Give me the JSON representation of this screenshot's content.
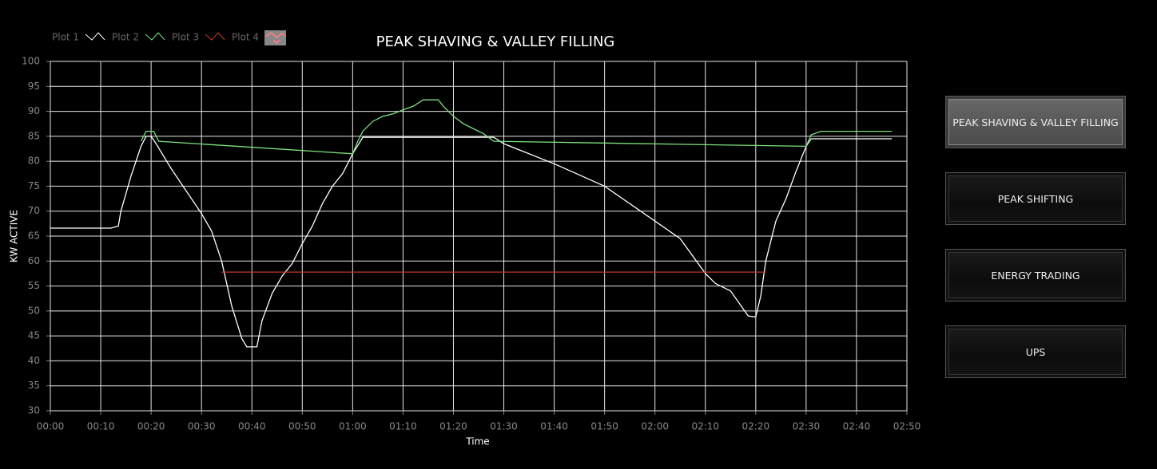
{
  "chart_data": {
    "type": "line",
    "title": "PEAK SHAVING & VALLEY FILLING",
    "x_label": "Time",
    "y_label": "KW ACTIVE",
    "xlim": [
      0,
      170
    ],
    "ylim": [
      30,
      100
    ],
    "xticks": [
      {
        "value": 0,
        "label": "00:00"
      },
      {
        "value": 10,
        "label": "00:10"
      },
      {
        "value": 20,
        "label": "00:20"
      },
      {
        "value": 30,
        "label": "00:30"
      },
      {
        "value": 40,
        "label": "00:40"
      },
      {
        "value": 50,
        "label": "00:50"
      },
      {
        "value": 60,
        "label": "01:00"
      },
      {
        "value": 70,
        "label": "01:10"
      },
      {
        "value": 80,
        "label": "01:20"
      },
      {
        "value": 90,
        "label": "01:30"
      },
      {
        "value": 100,
        "label": "01:40"
      },
      {
        "value": 110,
        "label": "01:50"
      },
      {
        "value": 120,
        "label": "02:00"
      },
      {
        "value": 130,
        "label": "02:10"
      },
      {
        "value": 140,
        "label": "02:20"
      },
      {
        "value": 150,
        "label": "02:30"
      },
      {
        "value": 160,
        "label": "02:40"
      },
      {
        "value": 170,
        "label": "02:50"
      }
    ],
    "yticks": [
      30,
      35,
      40,
      45,
      50,
      55,
      60,
      65,
      70,
      75,
      80,
      85,
      90,
      95,
      100
    ],
    "grid": true,
    "series": [
      {
        "name": "Plot 1",
        "color": "#ffffff",
        "x": [
          0,
          10,
          12,
          13.5,
          14,
          16,
          18,
          19,
          20,
          21,
          24,
          27,
          30,
          32,
          34,
          36,
          38,
          39,
          41,
          42,
          44,
          46,
          48,
          50,
          52,
          54,
          56,
          58,
          60,
          62,
          63,
          88,
          90,
          100,
          110,
          120,
          125,
          130,
          132,
          135,
          138.5,
          140,
          141,
          142,
          144,
          146,
          148,
          150,
          151,
          152,
          167
        ],
        "values": [
          66.6,
          66.6,
          66.6,
          67,
          70,
          77,
          83,
          85,
          85,
          83.5,
          78.5,
          74,
          69.5,
          66,
          60,
          51,
          44.5,
          42.8,
          42.8,
          48,
          53.5,
          57,
          59.5,
          63.5,
          67,
          71.5,
          75,
          77.5,
          81.5,
          84.8,
          84.8,
          84.8,
          83.5,
          79.5,
          75,
          68,
          64.5,
          57.5,
          55.5,
          54,
          49,
          48.8,
          53,
          60,
          68,
          72.5,
          78,
          83,
          84.5,
          84.5,
          84.5
        ]
      },
      {
        "name": "Plot 2",
        "color": "#7ee07e",
        "x": [
          18,
          19,
          20.5,
          21.5,
          60,
          61,
          62,
          64,
          66,
          68,
          70,
          72,
          74,
          77,
          78,
          80,
          82,
          84,
          86,
          88,
          150,
          151,
          153,
          167
        ],
        "values": [
          84,
          86,
          86,
          84,
          81.5,
          84,
          86,
          88,
          89,
          89.5,
          90.3,
          91,
          92.3,
          92.3,
          91,
          89,
          87.5,
          86.5,
          85.5,
          84,
          83,
          85.3,
          86,
          86
        ]
      },
      {
        "name": "Plot 3",
        "color": "#c0392b",
        "x": [
          34,
          46,
          130,
          142
        ],
        "values": [
          57.8,
          57.8,
          57.8,
          57.8
        ]
      },
      {
        "name": "Plot 4",
        "color": "#f08080",
        "x": [],
        "values": []
      }
    ]
  },
  "buttons": [
    "PEAK SHAVING & VALLEY FILLING",
    "PEAK SHIFTING",
    "ENERGY TRADING",
    "UPS"
  ]
}
